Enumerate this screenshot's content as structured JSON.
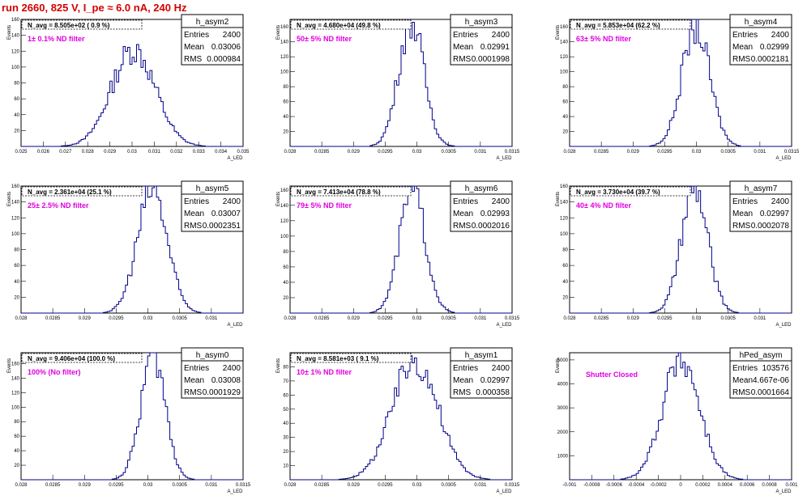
{
  "header": {
    "title": "run 2660,   825 V, I_pe ≈ 6.0 nA, 240 Hz"
  },
  "style": {
    "header_color": "#d40000",
    "filter_color": "#e000e0",
    "line_color": "#00008b",
    "box_color": "#000000"
  },
  "chart_data": [
    {
      "type": "histogram",
      "name": "h_asym2",
      "ylabel": "Events",
      "xlabel": "A_LED",
      "navg": "N_avg = 8.505e+02 ( 0.9 %)",
      "filter": "1± 0.1% ND filter",
      "stats": [
        [
          "Entries",
          "2400"
        ],
        [
          "Mean",
          "0.03006"
        ],
        [
          "RMS",
          "0.000984"
        ]
      ],
      "xlim": [
        0.025,
        0.035
      ],
      "ylim": [
        0,
        160
      ],
      "xticks": [
        0.025,
        0.026,
        0.027,
        0.028,
        0.029,
        0.03,
        0.031,
        0.032,
        0.033,
        0.034,
        0.035
      ],
      "xtick_labels": [
        "0.025",
        "0.026",
        "0.027",
        "0.028",
        "0.029",
        "0.03",
        "0.031",
        "0.032",
        "0.033",
        "0.034",
        "0.035"
      ],
      "yticks": [
        0,
        20,
        40,
        60,
        80,
        100,
        120,
        140,
        160
      ],
      "ytick_labels": [
        "",
        "20",
        "40",
        "60",
        "80",
        "100",
        "120",
        "140",
        "160"
      ],
      "peak": 0.03006,
      "sigma": 0.000984,
      "max": 122,
      "nbins": 100
    },
    {
      "type": "histogram",
      "name": "h_asym3",
      "ylabel": "Events",
      "xlabel": "A_LED",
      "navg": "N_avg = 4.680e+04 (49.8 %)",
      "filter": "50± 5% ND filter",
      "stats": [
        [
          "Entries",
          "2400"
        ],
        [
          "Mean",
          "0.02991"
        ],
        [
          "RMS",
          "0.0001998"
        ]
      ],
      "xlim": [
        0.028,
        0.0315
      ],
      "ylim": [
        0,
        170
      ],
      "xticks": [
        0.028,
        0.0285,
        0.029,
        0.0295,
        0.03,
        0.0305,
        0.031,
        0.0315
      ],
      "xtick_labels": [
        "0.028",
        "0.0285",
        "0.029",
        "0.0295",
        "0.03",
        "0.0305",
        "0.031",
        "0.0315"
      ],
      "yticks": [
        0,
        20,
        40,
        60,
        80,
        100,
        120,
        140,
        160
      ],
      "ytick_labels": [
        "",
        "20",
        "40",
        "60",
        "80",
        "100",
        "120",
        "140",
        "160"
      ],
      "peak": 0.02991,
      "sigma": 0.0001998,
      "max": 168,
      "nbins": 100
    },
    {
      "type": "histogram",
      "name": "h_asym4",
      "ylabel": "Events",
      "xlabel": "A_LED",
      "navg": "N_avg = 5.853e+04 (62.2 %)",
      "filter": "63± 5% ND filter",
      "stats": [
        [
          "Entries",
          "2400"
        ],
        [
          "Mean",
          "0.02999"
        ],
        [
          "RMS",
          "0.0002181"
        ]
      ],
      "xlim": [
        0.028,
        0.0315
      ],
      "ylim": [
        0,
        170
      ],
      "xticks": [
        0.028,
        0.0285,
        0.029,
        0.0295,
        0.03,
        0.0305,
        0.031,
        0.0315
      ],
      "xtick_labels": [
        "0.028",
        "0.0285",
        "0.029",
        "0.0295",
        "0.03",
        "0.0305",
        "0.031",
        "0.0315"
      ],
      "yticks": [
        0,
        20,
        40,
        60,
        80,
        100,
        120,
        140,
        160
      ],
      "ytick_labels": [
        "",
        "20",
        "40",
        "60",
        "80",
        "100",
        "120",
        "140",
        "160"
      ],
      "peak": 0.02999,
      "sigma": 0.0002181,
      "max": 160,
      "nbins": 100
    },
    {
      "type": "histogram",
      "name": "h_asym5",
      "ylabel": "Events",
      "xlabel": "A_LED",
      "navg": "N_avg = 2.361e+04 (25.1 %)",
      "filter": "25± 2.5% ND filter",
      "stats": [
        [
          "Entries",
          "2400"
        ],
        [
          "Mean",
          "0.03007"
        ],
        [
          "RMS",
          "0.0002351"
        ]
      ],
      "xlim": [
        0.028,
        0.0315
      ],
      "ylim": [
        0,
        160
      ],
      "xticks": [
        0.028,
        0.0285,
        0.029,
        0.0295,
        0.03,
        0.0305,
        0.031
      ],
      "xtick_labels": [
        "0.028",
        "0.0285",
        "0.029",
        "0.0295",
        "0.03",
        "0.0305",
        "0.031"
      ],
      "yticks": [
        0,
        20,
        40,
        60,
        80,
        100,
        120,
        140,
        160
      ],
      "ytick_labels": [
        "",
        "20",
        "40",
        "60",
        "80",
        "100",
        "120",
        "140",
        "160"
      ],
      "peak": 0.03007,
      "sigma": 0.0002351,
      "max": 155,
      "nbins": 100
    },
    {
      "type": "histogram",
      "name": "h_asym6",
      "ylabel": "Events",
      "xlabel": "A_LED",
      "navg": "N_avg = 7.413e+04 (78.8 %)",
      "filter": "79± 5% ND filter",
      "stats": [
        [
          "Entries",
          "2400"
        ],
        [
          "Mean",
          "0.02993"
        ],
        [
          "RMS",
          "0.0002016"
        ]
      ],
      "xlim": [
        0.028,
        0.0315
      ],
      "ylim": [
        0,
        165
      ],
      "xticks": [
        0.028,
        0.0285,
        0.029,
        0.0295,
        0.03,
        0.0305,
        0.031,
        0.0315
      ],
      "xtick_labels": [
        "0.028",
        "0.0285",
        "0.029",
        "0.0295",
        "0.03",
        "0.0305",
        "0.031",
        "0.0315"
      ],
      "yticks": [
        0,
        20,
        40,
        60,
        80,
        100,
        120,
        140,
        160
      ],
      "ytick_labels": [
        "",
        "20",
        "40",
        "60",
        "80",
        "100",
        "120",
        "140",
        "160"
      ],
      "peak": 0.02993,
      "sigma": 0.0002016,
      "max": 160,
      "nbins": 100
    },
    {
      "type": "histogram",
      "name": "h_asym7",
      "ylabel": "Events",
      "xlabel": "A_LED",
      "navg": "N_avg = 3.730e+04 (39.7 %)",
      "filter": "40± 4% ND filter",
      "stats": [
        [
          "Entries",
          "2400"
        ],
        [
          "Mean",
          "0.02997"
        ],
        [
          "RMS",
          "0.0002078"
        ]
      ],
      "xlim": [
        0.028,
        0.0315
      ],
      "ylim": [
        0,
        160
      ],
      "xticks": [
        0.028,
        0.0285,
        0.029,
        0.0295,
        0.03,
        0.0305,
        0.031
      ],
      "xtick_labels": [
        "0.028",
        "0.0285",
        "0.029",
        "0.0295",
        "0.03",
        "0.0305",
        "0.031"
      ],
      "yticks": [
        0,
        20,
        40,
        60,
        80,
        100,
        120,
        140,
        160
      ],
      "ytick_labels": [
        "",
        "20",
        "40",
        "60",
        "80",
        "100",
        "120",
        "140",
        "160"
      ],
      "peak": 0.02997,
      "sigma": 0.0002078,
      "max": 155,
      "nbins": 100
    },
    {
      "type": "histogram",
      "name": "h_asym0",
      "ylabel": "Events",
      "xlabel": "A_LED",
      "navg": "N_avg = 9.406e+04 (100.0 %)",
      "filter": "100% (No filter)",
      "stats": [
        [
          "Entries",
          "2400"
        ],
        [
          "Mean",
          "0.03008"
        ],
        [
          "RMS",
          "0.0001929"
        ]
      ],
      "xlim": [
        0.028,
        0.0315
      ],
      "ylim": [
        0,
        175
      ],
      "xticks": [
        0.028,
        0.0285,
        0.029,
        0.0295,
        0.03,
        0.0305,
        0.031,
        0.0315
      ],
      "xtick_labels": [
        "0.028",
        "0.0285",
        "0.029",
        "0.0295",
        "0.03",
        "0.0305",
        "0.031",
        "0.0315"
      ],
      "yticks": [
        0,
        20,
        40,
        60,
        80,
        100,
        120,
        140,
        160
      ],
      "ytick_labels": [
        "",
        "20",
        "40",
        "60",
        "80",
        "100",
        "120",
        "140",
        "160"
      ],
      "peak": 0.03008,
      "sigma": 0.0001929,
      "max": 172,
      "nbins": 100
    },
    {
      "type": "histogram",
      "name": "h_asym1",
      "ylabel": "Events",
      "xlabel": "A_LED",
      "navg": "N_avg = 8.581e+03 ( 9.1 %)",
      "filter": "10± 1% ND filter",
      "stats": [
        [
          "Entries",
          "2400"
        ],
        [
          "Mean",
          "0.02997"
        ],
        [
          "RMS",
          "0.000358"
        ]
      ],
      "xlim": [
        0.028,
        0.0315
      ],
      "ylim": [
        0,
        90
      ],
      "xticks": [
        0.028,
        0.0285,
        0.029,
        0.0295,
        0.03,
        0.0305,
        0.031,
        0.0315
      ],
      "xtick_labels": [
        "0.028",
        "0.0285",
        "0.029",
        "0.0295",
        "0.03",
        "0.0305",
        "0.031",
        "0.0315"
      ],
      "yticks": [
        0,
        10,
        20,
        30,
        40,
        50,
        60,
        70,
        80
      ],
      "ytick_labels": [
        "",
        "10",
        "20",
        "30",
        "40",
        "50",
        "60",
        "70",
        "80"
      ],
      "peak": 0.02997,
      "sigma": 0.000358,
      "max": 85,
      "nbins": 100
    },
    {
      "type": "histogram",
      "name": "hPed_asym",
      "ylabel": "Events",
      "xlabel": "A_LED",
      "navg": "",
      "filter": "Shutter Closed",
      "stats": [
        [
          "Entries",
          "103576"
        ],
        [
          "Mean",
          "4.667e-06"
        ],
        [
          "RMS",
          "0.0001664"
        ]
      ],
      "xlim": [
        -0.001,
        0.001
      ],
      "ylim": [
        0,
        5300
      ],
      "xticks": [
        -0.001,
        -0.0008,
        -0.0006,
        -0.0004,
        -0.0002,
        0,
        0.0002,
        0.0004,
        0.0006,
        0.0008,
        0.001
      ],
      "xtick_labels": [
        "-0.001",
        "-0.0008",
        "-0.0006",
        "-0.0004",
        "-0.0002",
        "0",
        "0.0002",
        "0.0004",
        "0.0006",
        "0.0008",
        "0.001"
      ],
      "yticks": [
        0,
        1000,
        2000,
        3000,
        4000,
        5000
      ],
      "ytick_labels": [
        "",
        "1000",
        "2000",
        "3000",
        "4000",
        "5000"
      ],
      "peak": 4.7e-06,
      "sigma": 0.0001664,
      "max": 5050,
      "nbins": 100
    }
  ]
}
